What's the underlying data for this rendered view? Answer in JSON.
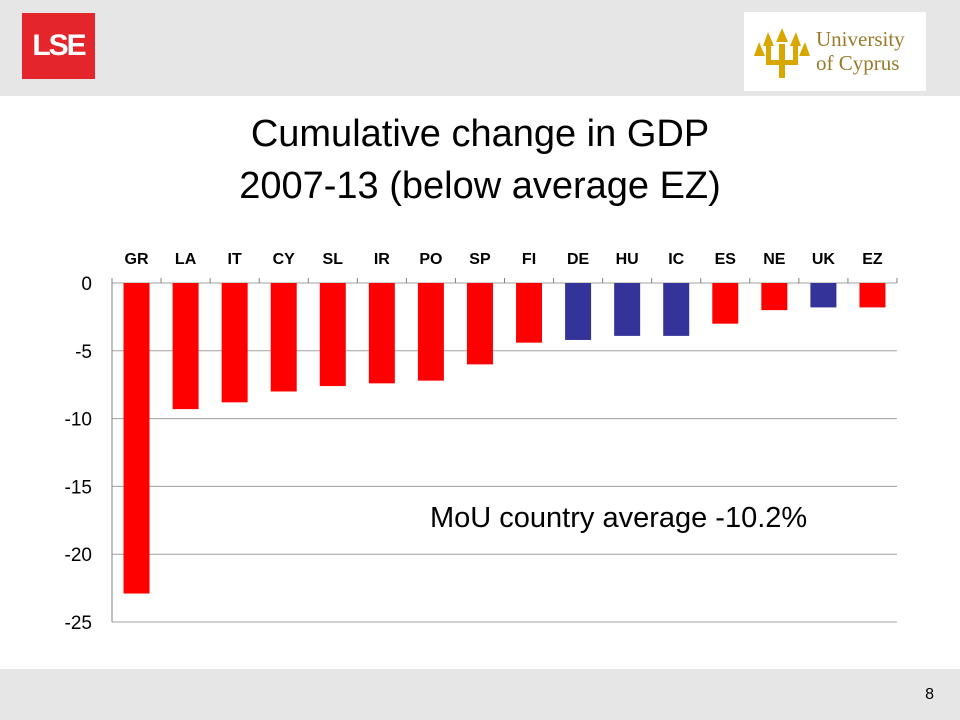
{
  "header": {
    "lse_logo_text": "LSE",
    "ucy_logo_line1": "University",
    "ucy_logo_line2": "of Cyprus"
  },
  "slide": {
    "title_line1": "Cumulative change in GDP",
    "title_line2": "2007-13 (below average EZ)",
    "page_number": "8",
    "annotation": "MoU country average -10.2%"
  },
  "colors": {
    "red": "#ff0000",
    "blue": "#333399",
    "grid": "#a0a0a0"
  },
  "chart_data": {
    "type": "bar",
    "categories": [
      "GR",
      "LA",
      "IT",
      "CY",
      "SL",
      "IR",
      "PO",
      "SP",
      "FI",
      "DE",
      "HU",
      "IC",
      "ES",
      "NE",
      "UK",
      "EZ"
    ],
    "values": [
      -22.9,
      -9.3,
      -8.8,
      -8.0,
      -7.6,
      -7.4,
      -7.2,
      -6.0,
      -4.4,
      -4.2,
      -3.9,
      -3.9,
      -3.0,
      -2.0,
      -1.8,
      -1.8
    ],
    "bar_colors": [
      "red",
      "red",
      "red",
      "red",
      "red",
      "red",
      "red",
      "red",
      "red",
      "blue",
      "blue",
      "blue",
      "red",
      "red",
      "blue",
      "red"
    ],
    "ylim": [
      -25,
      0
    ],
    "yticks": [
      0,
      -5,
      -10,
      -15,
      -20,
      -25
    ],
    "grid": true,
    "xlabel": "",
    "ylabel": ""
  }
}
